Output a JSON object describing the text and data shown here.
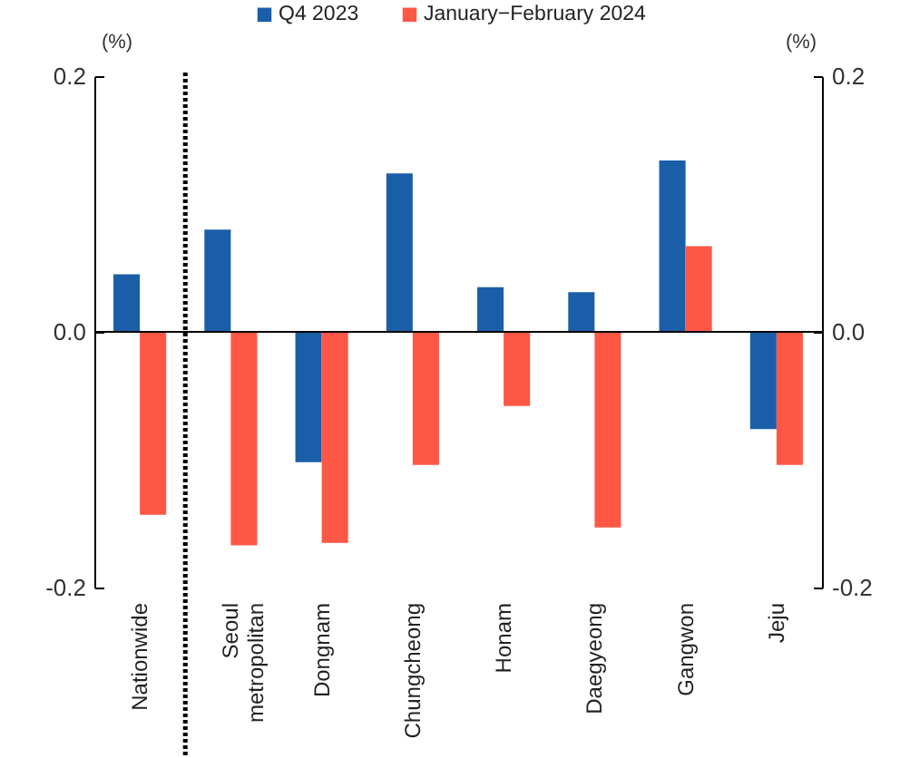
{
  "chart_data": {
    "type": "bar",
    "categories": [
      "Nationwide",
      "Seoul metropolitan",
      "Dongnam",
      "Chungcheong",
      "Honam",
      "Daegyeong",
      "Gangwon",
      "Jeju"
    ],
    "series": [
      {
        "name": "Q4 2023",
        "color": "#1a5ea8",
        "values": [
          0.045,
          0.08,
          -0.102,
          0.124,
          0.035,
          0.031,
          0.134,
          -0.076
        ]
      },
      {
        "name": "January−February 2024",
        "color": "#fe5746",
        "values": [
          -0.143,
          -0.167,
          -0.165,
          -0.104,
          -0.058,
          -0.153,
          0.067,
          -0.104
        ]
      }
    ],
    "ylabel": "(%)",
    "y2label": "(%)",
    "ylim": [
      -0.2,
      0.2
    ],
    "yticks": [
      -0.2,
      {
        "value": 0,
        "label": "0.0"
      },
      0.2
    ],
    "y2lim": [
      -0.2,
      0.2
    ],
    "y2ticks": [
      -0.2,
      {
        "value": 0,
        "label": "0.0"
      },
      0.2
    ],
    "ref_lines": [
      {
        "axis": "x",
        "value": "Seoul metropolitan",
        "color": "#000000",
        "line_style": "dotted"
      }
    ],
    "legend": "top",
    "grid": false
  }
}
